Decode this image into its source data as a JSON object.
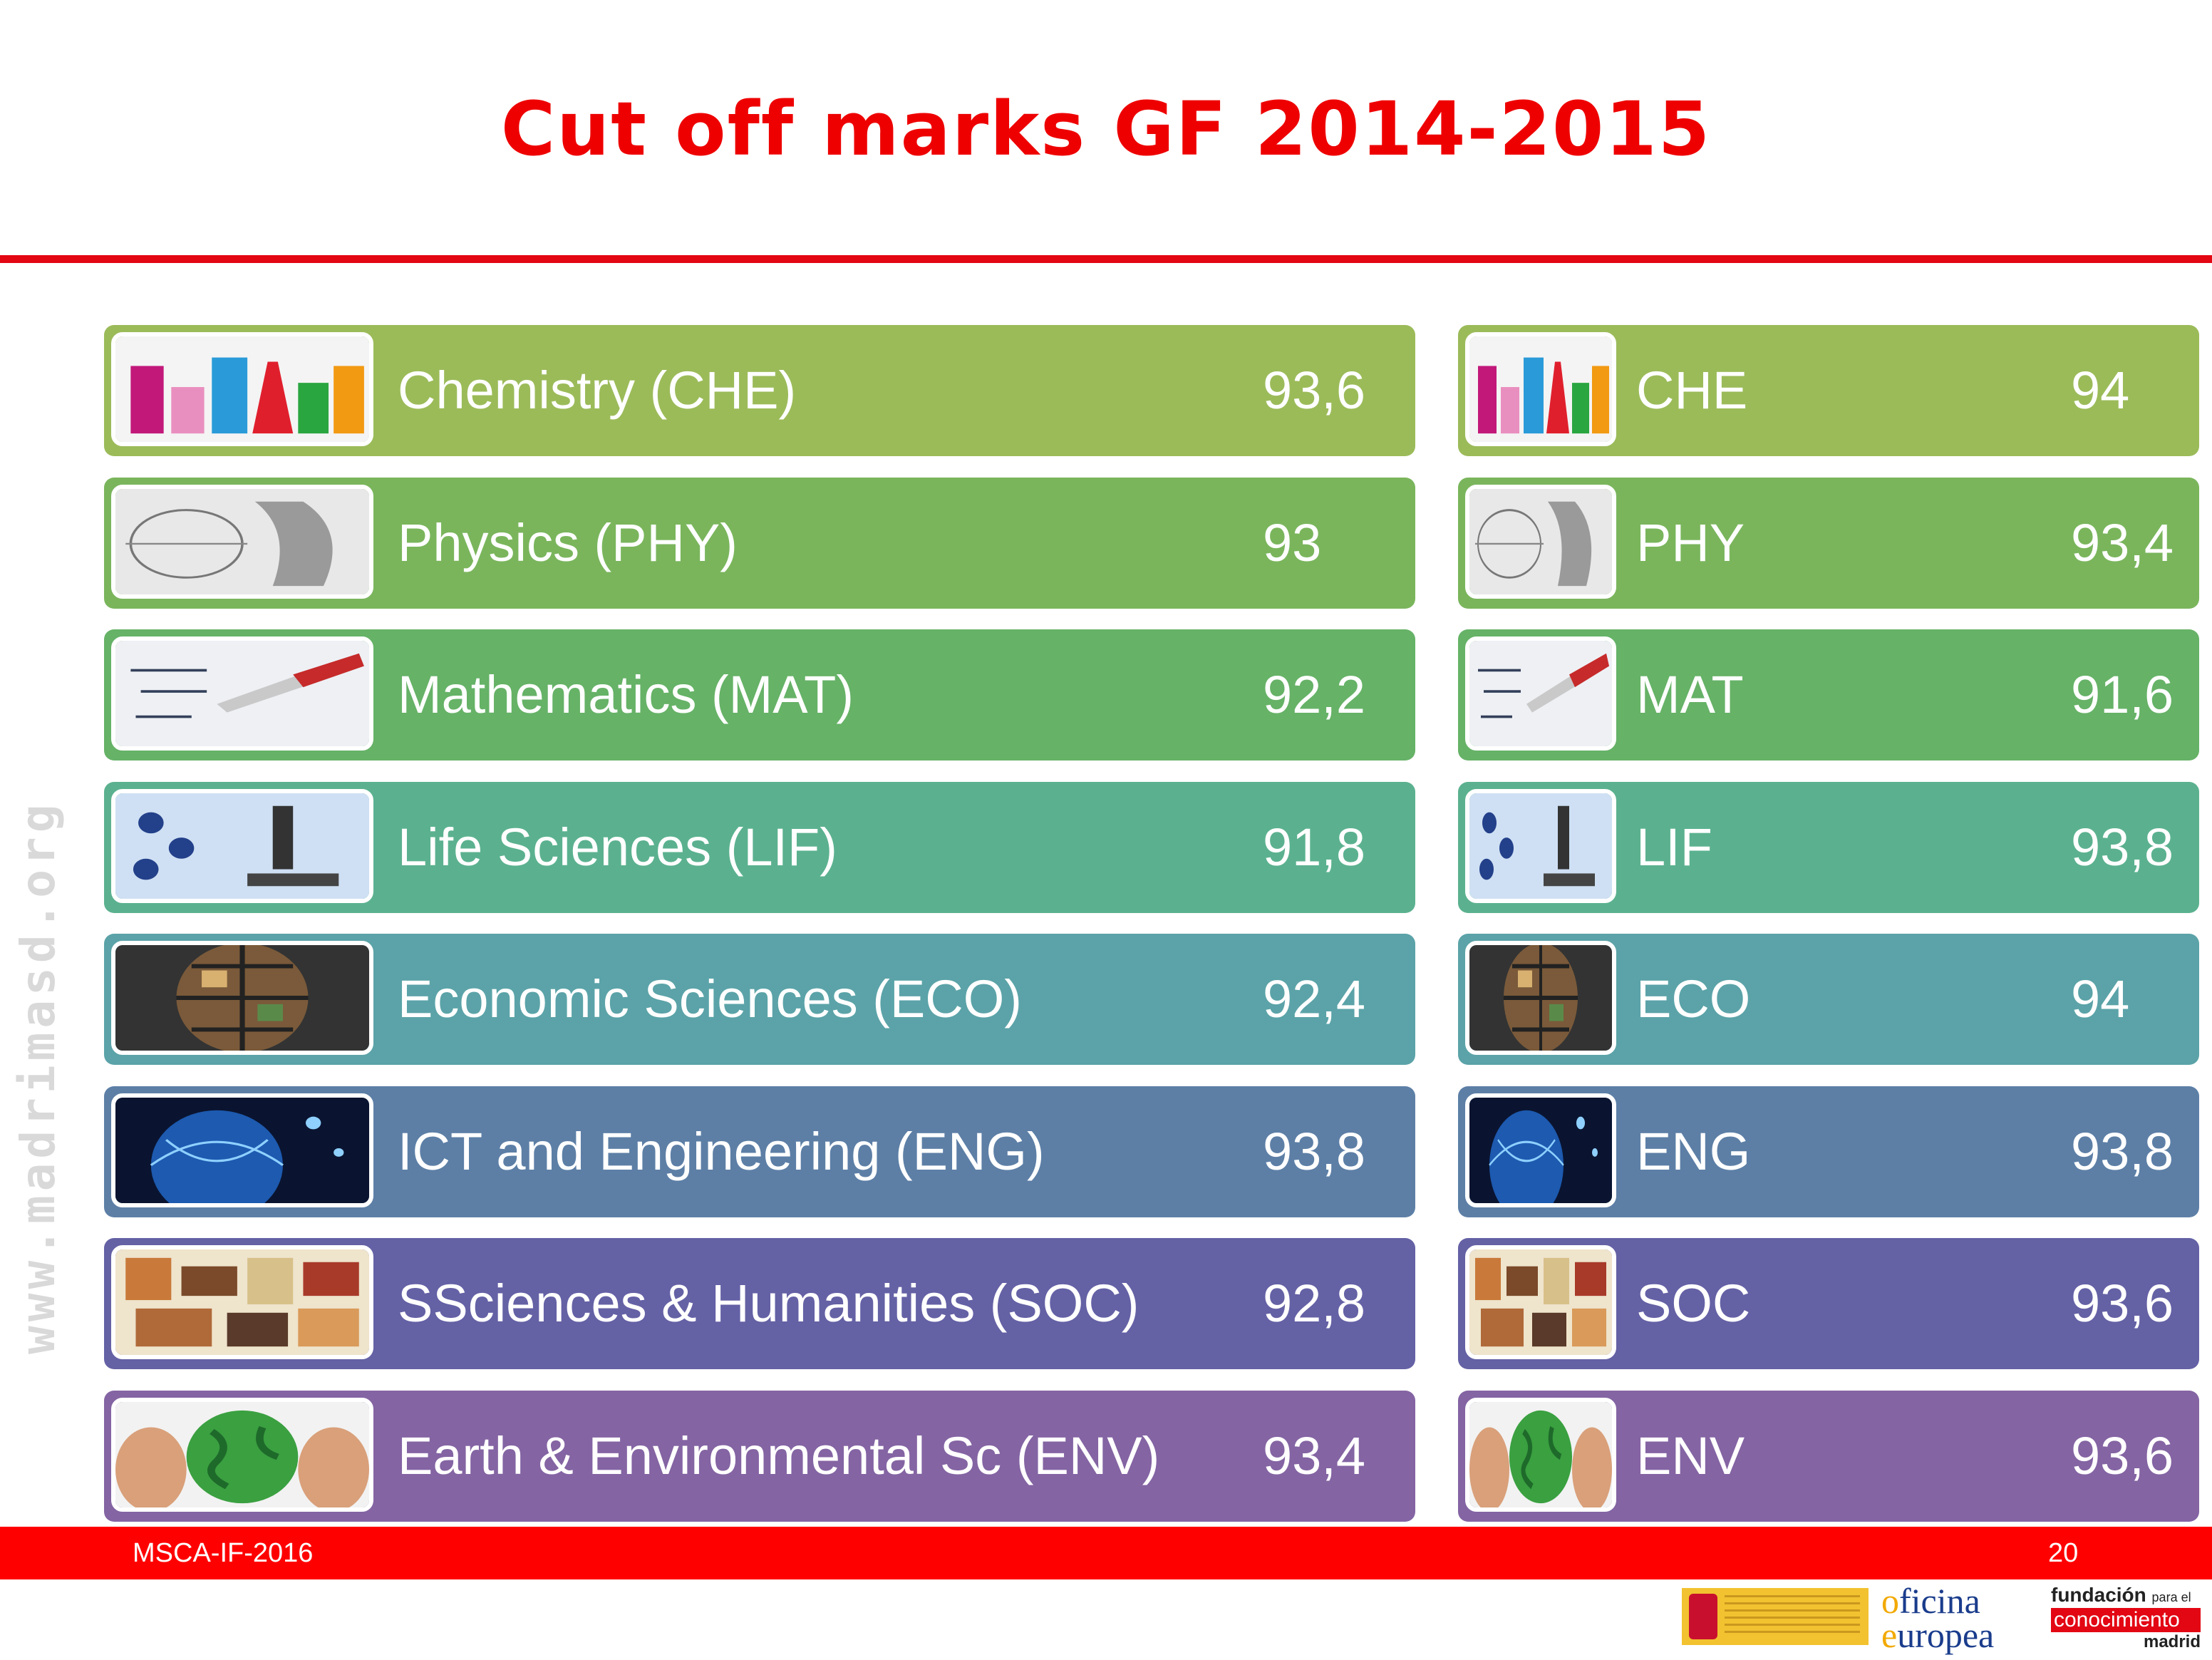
{
  "title": "Cut off marks GF 2014-2015",
  "watermark": "www.madrimasd.org",
  "rows": [
    {
      "color": "#9bbb59",
      "image": "chemistry-flasks",
      "left": {
        "label": "Chemistry (CHE)",
        "value": "93,6"
      },
      "right": {
        "label": "CHE",
        "value": "94"
      }
    },
    {
      "color": "#7ab55c",
      "image": "physics-sketch",
      "left": {
        "label": "Physics (PHY)",
        "value": "93"
      },
      "right": {
        "label": "PHY",
        "value": "93,4"
      }
    },
    {
      "color": "#66b267",
      "image": "math-pen",
      "left": {
        "label": "Mathematics (MAT)",
        "value": "92,2"
      },
      "right": {
        "label": "MAT",
        "value": "91,6"
      }
    },
    {
      "color": "#5bb18f",
      "image": "microscope",
      "left": {
        "label": "Life Sciences (LIF)",
        "value": "91,8"
      },
      "right": {
        "label": "LIF",
        "value": "93,8"
      }
    },
    {
      "color": "#5ba3a8",
      "image": "photo-globe",
      "left": {
        "label": "Economic Sciences (ECO)",
        "value": "92,4"
      },
      "right": {
        "label": "ECO",
        "value": "94"
      }
    },
    {
      "color": "#5d7fa6",
      "image": "network-globe",
      "left": {
        "label": "ICT and Engineering (ENG)",
        "value": "93,8"
      },
      "right": {
        "label": "ENG",
        "value": "93,8"
      }
    },
    {
      "color": "#6461a5",
      "image": "collage",
      "left": {
        "label": "SSciences & Humanities (SOC)",
        "value": "92,8"
      },
      "right": {
        "label": "SOC",
        "value": "93,6"
      }
    },
    {
      "color": "#8464a3",
      "image": "earth-hands",
      "left": {
        "label": "Earth & Environmental Sc (ENV)",
        "value": "93,4"
      },
      "right": {
        "label": "ENV",
        "value": "93,6"
      }
    }
  ],
  "footer": {
    "left": "MSCA-IF-2016",
    "right": "20",
    "bar_color": "#ff0000"
  },
  "logos": {
    "oficina_line1_initial": "o",
    "oficina_line1_rest": "ficina",
    "oficina_line2_initial": "e",
    "oficina_line2_rest": "uropea",
    "fundacion_line1": "fundación",
    "fundacion_line1_small": "para el",
    "fundacion_line2": "conocimiento",
    "fundacion_line3": "madrid"
  }
}
